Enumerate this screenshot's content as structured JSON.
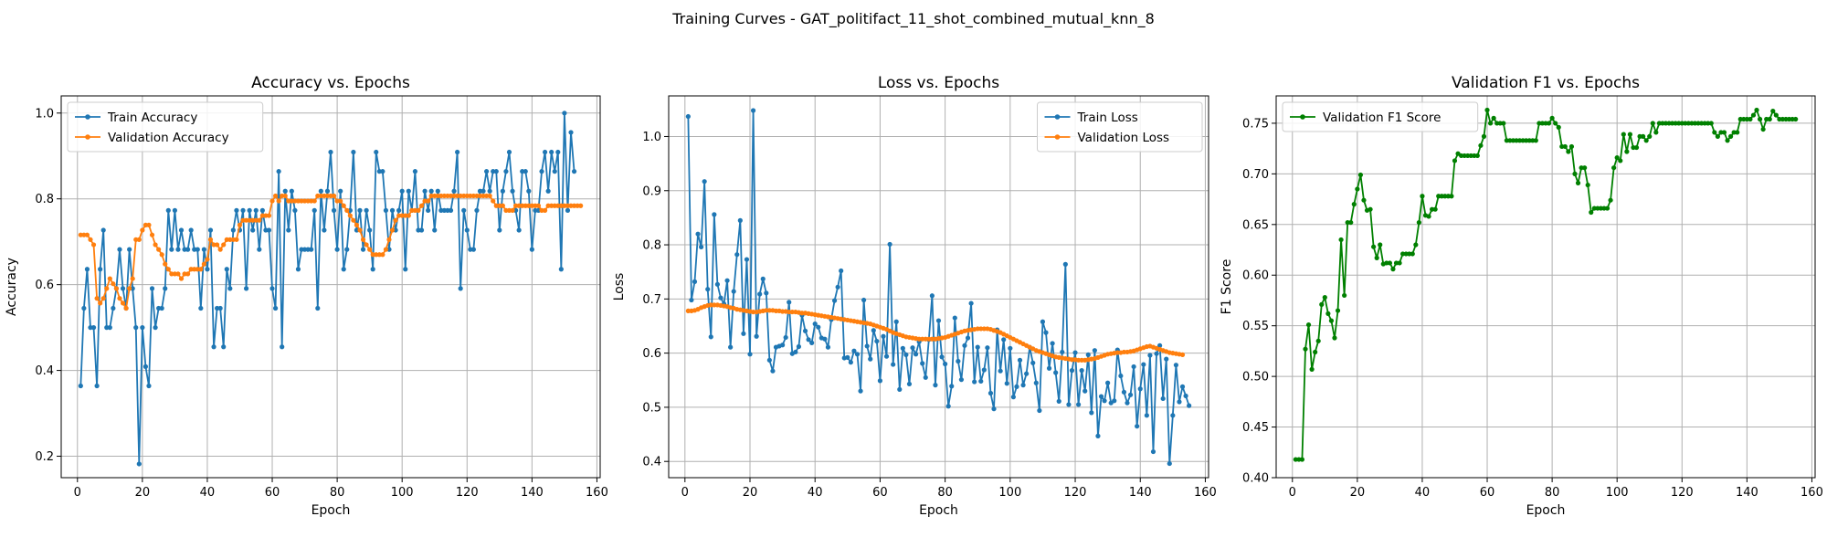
{
  "figure": {
    "suptitle": "Training Curves - GAT_politifact_11_shot_combined_mutual_knn_8"
  },
  "colors": {
    "train": "#1f77b4",
    "validation": "#ff7f0e",
    "f1": "#008000",
    "grid": "#b0b0b0"
  },
  "chart_data": [
    {
      "type": "line",
      "title": "Accuracy vs. Epochs",
      "xlabel": "Epoch",
      "ylabel": "Accuracy",
      "xlim": [
        -5,
        161
      ],
      "ylim": [
        0.15,
        1.04
      ],
      "xticks": [
        0,
        20,
        40,
        60,
        80,
        100,
        120,
        140,
        160
      ],
      "yticks": [
        0.2,
        0.4,
        0.6,
        0.8,
        1.0
      ],
      "ytick_decimals": 1,
      "grid": true,
      "legend_position": "top-left",
      "x_start": 1,
      "series": [
        {
          "name": "Train Accuracy",
          "color": "#1f77b4",
          "values": [
            0.364,
            0.545,
            0.636,
            0.5,
            0.5,
            0.364,
            0.636,
            0.727,
            0.5,
            0.5,
            0.545,
            0.591,
            0.682,
            0.591,
            0.545,
            0.682,
            0.591,
            0.5,
            0.182,
            0.5,
            0.409,
            0.364,
            0.591,
            0.5,
            0.545,
            0.545,
            0.591,
            0.773,
            0.682,
            0.773,
            0.682,
            0.727,
            0.682,
            0.682,
            0.727,
            0.682,
            0.682,
            0.545,
            0.682,
            0.636,
            0.727,
            0.455,
            0.545,
            0.545,
            0.455,
            0.636,
            0.591,
            0.727,
            0.773,
            0.727,
            0.773,
            0.591,
            0.773,
            0.727,
            0.773,
            0.682,
            0.773,
            0.727,
            0.727,
            0.591,
            0.545,
            0.864,
            0.455,
            0.818,
            0.727,
            0.818,
            0.773,
            0.636,
            0.682,
            0.682,
            0.682,
            0.682,
            0.773,
            0.545,
            0.818,
            0.727,
            0.818,
            0.909,
            0.773,
            0.682,
            0.818,
            0.636,
            0.682,
            0.773,
            0.909,
            0.727,
            0.773,
            0.682,
            0.773,
            0.727,
            0.636,
            0.909,
            0.864,
            0.864,
            0.773,
            0.682,
            0.773,
            0.727,
            0.773,
            0.818,
            0.636,
            0.818,
            0.773,
            0.864,
            0.727,
            0.727,
            0.818,
            0.773,
            0.818,
            0.727,
            0.818,
            0.773,
            0.773,
            0.773,
            0.773,
            0.818,
            0.909,
            0.591,
            0.773,
            0.727,
            0.682,
            0.682,
            0.773,
            0.818,
            0.818,
            0.864,
            0.818,
            0.864,
            0.864,
            0.727,
            0.818,
            0.864,
            0.909,
            0.818,
            0.773,
            0.727,
            0.864,
            0.864,
            0.818,
            0.682,
            0.773,
            0.773,
            0.864,
            0.909,
            0.818,
            0.909,
            0.864,
            0.909,
            0.636,
            1.0,
            0.773,
            0.955,
            0.864
          ]
        },
        {
          "name": "Validation Accuracy",
          "color": "#ff7f0e",
          "values": [
            0.716,
            0.716,
            0.716,
            0.705,
            0.693,
            0.568,
            0.557,
            0.568,
            0.591,
            0.614,
            0.602,
            0.591,
            0.568,
            0.557,
            0.545,
            0.591,
            0.614,
            0.705,
            0.705,
            0.727,
            0.739,
            0.739,
            0.716,
            0.693,
            0.682,
            0.67,
            0.648,
            0.636,
            0.625,
            0.625,
            0.625,
            0.614,
            0.625,
            0.625,
            0.636,
            0.636,
            0.636,
            0.636,
            0.648,
            0.659,
            0.705,
            0.693,
            0.693,
            0.682,
            0.693,
            0.705,
            0.705,
            0.705,
            0.705,
            0.739,
            0.75,
            0.75,
            0.75,
            0.75,
            0.75,
            0.75,
            0.761,
            0.761,
            0.761,
            0.795,
            0.807,
            0.795,
            0.807,
            0.807,
            0.795,
            0.795,
            0.795,
            0.795,
            0.795,
            0.795,
            0.795,
            0.795,
            0.795,
            0.807,
            0.807,
            0.807,
            0.807,
            0.807,
            0.807,
            0.795,
            0.795,
            0.784,
            0.773,
            0.761,
            0.75,
            0.739,
            0.727,
            0.705,
            0.693,
            0.682,
            0.67,
            0.67,
            0.67,
            0.67,
            0.682,
            0.705,
            0.727,
            0.75,
            0.761,
            0.761,
            0.761,
            0.761,
            0.773,
            0.773,
            0.773,
            0.784,
            0.795,
            0.795,
            0.807,
            0.807,
            0.807,
            0.807,
            0.807,
            0.807,
            0.807,
            0.807,
            0.807,
            0.807,
            0.807,
            0.807,
            0.807,
            0.807,
            0.807,
            0.807,
            0.807,
            0.807,
            0.807,
            0.795,
            0.784,
            0.784,
            0.784,
            0.773,
            0.773,
            0.773,
            0.784,
            0.784,
            0.784,
            0.784,
            0.784,
            0.784,
            0.784,
            0.784,
            0.773,
            0.773,
            0.784,
            0.784,
            0.784,
            0.784,
            0.784,
            0.784,
            0.784,
            0.784,
            0.784,
            0.784,
            0.784
          ]
        }
      ]
    },
    {
      "type": "line",
      "title": "Loss vs. Epochs",
      "xlabel": "Epoch",
      "ylabel": "Loss",
      "xlim": [
        -5,
        161
      ],
      "ylim": [
        0.37,
        1.075
      ],
      "xticks": [
        0,
        20,
        40,
        60,
        80,
        100,
        120,
        140,
        160
      ],
      "yticks": [
        0.4,
        0.5,
        0.6,
        0.7,
        0.8,
        0.9,
        1.0
      ],
      "ytick_decimals": 1,
      "grid": true,
      "legend_position": "top-right",
      "x_start": 1,
      "series": [
        {
          "name": "Train Loss",
          "color": "#1f77b4",
          "values": [
            1.037,
            0.698,
            0.732,
            0.82,
            0.796,
            0.917,
            0.718,
            0.63,
            0.856,
            0.727,
            0.702,
            0.691,
            0.734,
            0.611,
            0.714,
            0.782,
            0.845,
            0.636,
            0.773,
            0.598,
            1.048,
            0.631,
            0.709,
            0.737,
            0.711,
            0.587,
            0.567,
            0.611,
            0.613,
            0.615,
            0.629,
            0.694,
            0.599,
            0.602,
            0.612,
            0.67,
            0.641,
            0.625,
            0.619,
            0.654,
            0.648,
            0.628,
            0.626,
            0.611,
            0.662,
            0.697,
            0.722,
            0.752,
            0.591,
            0.592,
            0.583,
            0.604,
            0.598,
            0.53,
            0.698,
            0.613,
            0.589,
            0.642,
            0.622,
            0.549,
            0.631,
            0.594,
            0.801,
            0.579,
            0.658,
            0.533,
            0.609,
            0.597,
            0.543,
            0.61,
            0.598,
            0.621,
            0.581,
            0.555,
            0.625,
            0.706,
            0.541,
            0.66,
            0.593,
            0.58,
            0.502,
            0.539,
            0.665,
            0.585,
            0.551,
            0.614,
            0.628,
            0.692,
            0.547,
            0.611,
            0.548,
            0.569,
            0.61,
            0.526,
            0.497,
            0.643,
            0.567,
            0.625,
            0.544,
            0.609,
            0.519,
            0.538,
            0.587,
            0.541,
            0.562,
            0.611,
            0.582,
            0.545,
            0.494,
            0.658,
            0.638,
            0.572,
            0.618,
            0.564,
            0.511,
            0.602,
            0.764,
            0.505,
            0.568,
            0.601,
            0.505,
            0.568,
            0.53,
            0.597,
            0.49,
            0.605,
            0.447,
            0.52,
            0.512,
            0.545,
            0.508,
            0.512,
            0.606,
            0.558,
            0.528,
            0.508,
            0.523,
            0.575,
            0.465,
            0.534,
            0.579,
            0.485,
            0.596,
            0.418,
            0.599,
            0.614,
            0.516,
            0.589,
            0.396,
            0.485,
            0.578,
            0.51,
            0.538,
            0.521,
            0.503
          ]
        },
        {
          "name": "Validation Loss",
          "color": "#ff7f0e",
          "values": [
            0.678,
            0.678,
            0.679,
            0.681,
            0.684,
            0.686,
            0.688,
            0.689,
            0.689,
            0.689,
            0.688,
            0.687,
            0.686,
            0.684,
            0.683,
            0.681,
            0.68,
            0.679,
            0.678,
            0.677,
            0.676,
            0.676,
            0.677,
            0.678,
            0.679,
            0.679,
            0.679,
            0.678,
            0.678,
            0.677,
            0.677,
            0.676,
            0.676,
            0.676,
            0.675,
            0.674,
            0.674,
            0.673,
            0.672,
            0.671,
            0.67,
            0.669,
            0.668,
            0.667,
            0.666,
            0.665,
            0.664,
            0.663,
            0.662,
            0.661,
            0.66,
            0.659,
            0.658,
            0.657,
            0.656,
            0.655,
            0.654,
            0.652,
            0.65,
            0.648,
            0.646,
            0.644,
            0.641,
            0.638,
            0.636,
            0.634,
            0.632,
            0.63,
            0.629,
            0.628,
            0.627,
            0.626,
            0.626,
            0.626,
            0.626,
            0.626,
            0.626,
            0.627,
            0.628,
            0.629,
            0.631,
            0.633,
            0.635,
            0.637,
            0.639,
            0.641,
            0.642,
            0.643,
            0.644,
            0.645,
            0.645,
            0.645,
            0.645,
            0.644,
            0.642,
            0.64,
            0.638,
            0.635,
            0.632,
            0.629,
            0.626,
            0.623,
            0.62,
            0.617,
            0.614,
            0.611,
            0.608,
            0.605,
            0.603,
            0.601,
            0.599,
            0.597,
            0.595,
            0.593,
            0.592,
            0.591,
            0.59,
            0.589,
            0.588,
            0.588,
            0.587,
            0.587,
            0.587,
            0.588,
            0.589,
            0.59,
            0.592,
            0.594,
            0.596,
            0.598,
            0.599,
            0.6,
            0.601,
            0.601,
            0.602,
            0.602,
            0.603,
            0.604,
            0.606,
            0.608,
            0.61,
            0.612,
            0.613,
            0.611,
            0.609,
            0.607,
            0.605,
            0.603,
            0.601,
            0.6,
            0.599,
            0.598,
            0.597
          ]
        }
      ]
    },
    {
      "type": "line",
      "title": "Validation F1 vs. Epochs",
      "xlabel": "Epoch",
      "ylabel": "F1 Score",
      "xlim": [
        -5,
        161
      ],
      "ylim": [
        0.4,
        0.777
      ],
      "xticks": [
        0,
        20,
        40,
        60,
        80,
        100,
        120,
        140,
        160
      ],
      "yticks": [
        0.4,
        0.45,
        0.5,
        0.55,
        0.6,
        0.65,
        0.7,
        0.75
      ],
      "ytick_decimals": 2,
      "grid": true,
      "legend_position": "top-left",
      "x_start": 1,
      "series": [
        {
          "name": "Validation F1 Score",
          "color": "#008000",
          "values": [
            0.418,
            0.418,
            0.418,
            0.527,
            0.551,
            0.507,
            0.524,
            0.535,
            0.571,
            0.578,
            0.562,
            0.555,
            0.538,
            0.565,
            0.635,
            0.58,
            0.652,
            0.652,
            0.67,
            0.685,
            0.699,
            0.674,
            0.664,
            0.665,
            0.628,
            0.617,
            0.63,
            0.611,
            0.612,
            0.612,
            0.606,
            0.612,
            0.612,
            0.621,
            0.621,
            0.621,
            0.621,
            0.63,
            0.652,
            0.678,
            0.659,
            0.658,
            0.665,
            0.665,
            0.678,
            0.678,
            0.678,
            0.678,
            0.678,
            0.713,
            0.72,
            0.718,
            0.718,
            0.718,
            0.718,
            0.718,
            0.718,
            0.728,
            0.737,
            0.763,
            0.75,
            0.755,
            0.75,
            0.75,
            0.75,
            0.733,
            0.733,
            0.733,
            0.733,
            0.733,
            0.733,
            0.733,
            0.733,
            0.733,
            0.733,
            0.75,
            0.75,
            0.75,
            0.75,
            0.755,
            0.75,
            0.746,
            0.727,
            0.727,
            0.722,
            0.727,
            0.7,
            0.691,
            0.706,
            0.706,
            0.689,
            0.662,
            0.666,
            0.666,
            0.666,
            0.666,
            0.666,
            0.674,
            0.706,
            0.716,
            0.713,
            0.739,
            0.722,
            0.739,
            0.726,
            0.726,
            0.737,
            0.737,
            0.733,
            0.737,
            0.75,
            0.741,
            0.75,
            0.75,
            0.75,
            0.75,
            0.75,
            0.75,
            0.75,
            0.75,
            0.75,
            0.75,
            0.75,
            0.75,
            0.75,
            0.75,
            0.75,
            0.75,
            0.75,
            0.741,
            0.737,
            0.741,
            0.741,
            0.733,
            0.737,
            0.741,
            0.741,
            0.754,
            0.754,
            0.754,
            0.754,
            0.758,
            0.763,
            0.754,
            0.744,
            0.754,
            0.754,
            0.762,
            0.758,
            0.754,
            0.754,
            0.754,
            0.754,
            0.754,
            0.754
          ]
        }
      ]
    }
  ]
}
